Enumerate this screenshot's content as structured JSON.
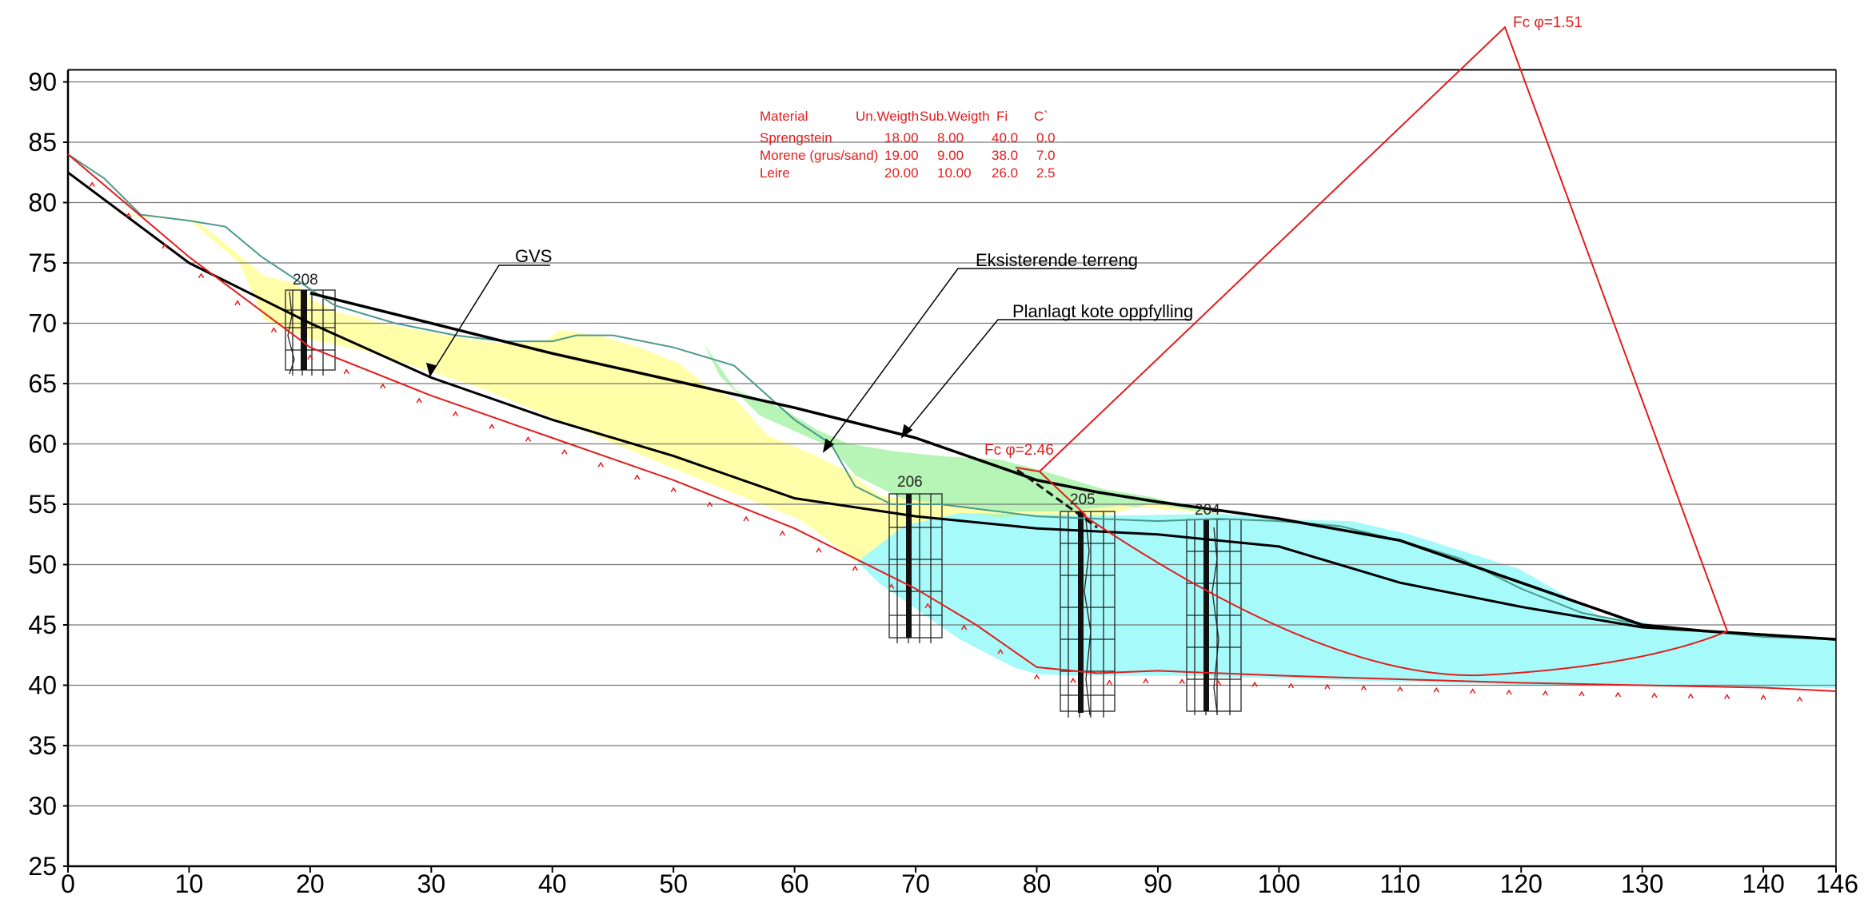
{
  "axes": {
    "x_ticks": [
      "0",
      "10",
      "20",
      "30",
      "40",
      "50",
      "60",
      "70",
      "80",
      "90",
      "100",
      "110",
      "120",
      "130",
      "140",
      "146"
    ],
    "y_ticks": [
      "25",
      "30",
      "35",
      "40",
      "45",
      "50",
      "55",
      "60",
      "65",
      "70",
      "75",
      "80",
      "85",
      "90"
    ],
    "xlim": [
      0,
      146
    ],
    "ylim": [
      25,
      91
    ]
  },
  "labels": {
    "gvs": "GVS",
    "terrain": "Eksisterende terreng",
    "fill": "Planlagt kote oppfylling",
    "fc_large": "Fc φ=1.51",
    "fc_small": "Fc φ=2.46"
  },
  "boreholes": [
    "208",
    "206",
    "205",
    "204"
  ],
  "material_table": {
    "headers": [
      "Material",
      "Un.Weigth",
      "Sub.Weigth",
      "Fi",
      "C`"
    ],
    "rows": [
      [
        "Sprengstein",
        "18.00",
        "8.00",
        "40.0",
        "0.0"
      ],
      [
        "Morene (grus/sand)",
        "19.00",
        "9.00",
        "38.0",
        "7.0"
      ],
      [
        "Leire",
        "20.00",
        "10.00",
        "26.0",
        "2.5"
      ]
    ]
  },
  "colors": {
    "sprengstein": "#ffffaa",
    "morene": "#b6f5b6",
    "leire": "#a6fafa",
    "red": "#e11d1d"
  },
  "chart_data": {
    "type": "area",
    "xlabel": "",
    "ylabel": "",
    "xlim": [
      0,
      146
    ],
    "ylim": [
      25,
      91
    ],
    "grid": "horizontal",
    "series": [
      {
        "name": "Eksisterende terreng",
        "x": [
          0,
          3,
          6,
          10,
          13,
          16,
          19,
          22,
          27,
          32,
          36,
          40,
          42,
          45,
          50,
          55,
          60,
          63,
          65,
          68,
          72,
          76,
          80,
          85,
          90,
          95,
          100,
          105,
          110,
          115,
          120,
          125,
          130,
          135,
          140,
          146
        ],
        "y": [
          84,
          82,
          79,
          78.5,
          78,
          75.5,
          73.5,
          71.5,
          70,
          69,
          68.5,
          68.5,
          69,
          69,
          68,
          66.5,
          62,
          60,
          56.5,
          55,
          55,
          54.5,
          54,
          53.8,
          53.6,
          53.8,
          53.6,
          53.2,
          52,
          50.5,
          48,
          46,
          45,
          44.5,
          44,
          43.8
        ]
      },
      {
        "name": "Planlagt kote oppfylling",
        "x": [
          20,
          40,
          60,
          70,
          80,
          85,
          90,
          95,
          100,
          110,
          120,
          130,
          135,
          146
        ],
        "y": [
          72.5,
          67.5,
          63,
          60.5,
          57,
          56,
          55.2,
          54.5,
          53.8,
          52,
          48.5,
          45,
          44.5,
          43.8
        ]
      },
      {
        "name": "GVS",
        "x": [
          0,
          10,
          20,
          30,
          40,
          50,
          60,
          70,
          80,
          90,
          100,
          110,
          120,
          130,
          140,
          146
        ],
        "y": [
          82.5,
          75,
          70,
          65.5,
          62,
          59,
          55.5,
          54,
          53,
          52.5,
          51.5,
          48.5,
          46.5,
          44.8,
          44.2,
          43.8
        ]
      },
      {
        "x": [
          0,
          10,
          20,
          30,
          40,
          50,
          60,
          70,
          75,
          80,
          85,
          90,
          100,
          110,
          120,
          130,
          140,
          146
        ],
        "y": [
          84,
          75.5,
          68,
          64,
          60.5,
          57,
          53,
          48,
          45,
          41.5,
          41,
          41.2,
          40.8,
          40.5,
          40.2,
          40,
          39.8,
          39.5
        ]
      }
    ]
  }
}
